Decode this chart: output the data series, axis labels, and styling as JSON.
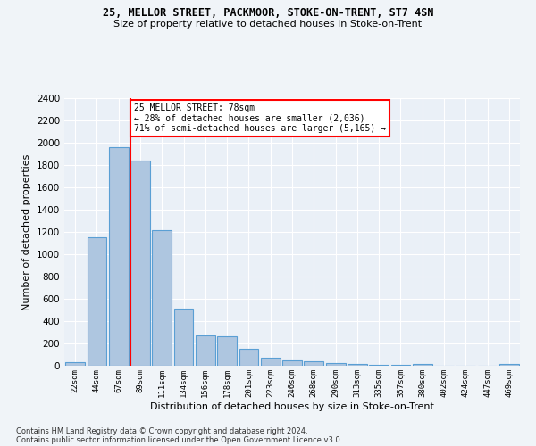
{
  "title": "25, MELLOR STREET, PACKMOOR, STOKE-ON-TRENT, ST7 4SN",
  "subtitle": "Size of property relative to detached houses in Stoke-on-Trent",
  "xlabel": "Distribution of detached houses by size in Stoke-on-Trent",
  "ylabel": "Number of detached properties",
  "categories": [
    "22sqm",
    "44sqm",
    "67sqm",
    "89sqm",
    "111sqm",
    "134sqm",
    "156sqm",
    "178sqm",
    "201sqm",
    "223sqm",
    "246sqm",
    "268sqm",
    "290sqm",
    "313sqm",
    "335sqm",
    "357sqm",
    "380sqm",
    "402sqm",
    "424sqm",
    "447sqm",
    "469sqm"
  ],
  "values": [
    30,
    1150,
    1960,
    1840,
    1220,
    510,
    270,
    265,
    155,
    75,
    45,
    40,
    22,
    18,
    10,
    5,
    20,
    0,
    0,
    0,
    20
  ],
  "bar_color": "#aec6e0",
  "bar_edge_color": "#5a9fd4",
  "annotation_line1": "25 MELLOR STREET: 78sqm",
  "annotation_line2": "← 28% of detached houses are smaller (2,036)",
  "annotation_line3": "71% of semi-detached houses are larger (5,165) →",
  "ylim": [
    0,
    2400
  ],
  "yticks": [
    0,
    200,
    400,
    600,
    800,
    1000,
    1200,
    1400,
    1600,
    1800,
    2000,
    2200,
    2400
  ],
  "footer1": "Contains HM Land Registry data © Crown copyright and database right 2024.",
  "footer2": "Contains public sector information licensed under the Open Government Licence v3.0.",
  "bg_color": "#f0f4f8",
  "plot_bg_color": "#eaf0f7"
}
